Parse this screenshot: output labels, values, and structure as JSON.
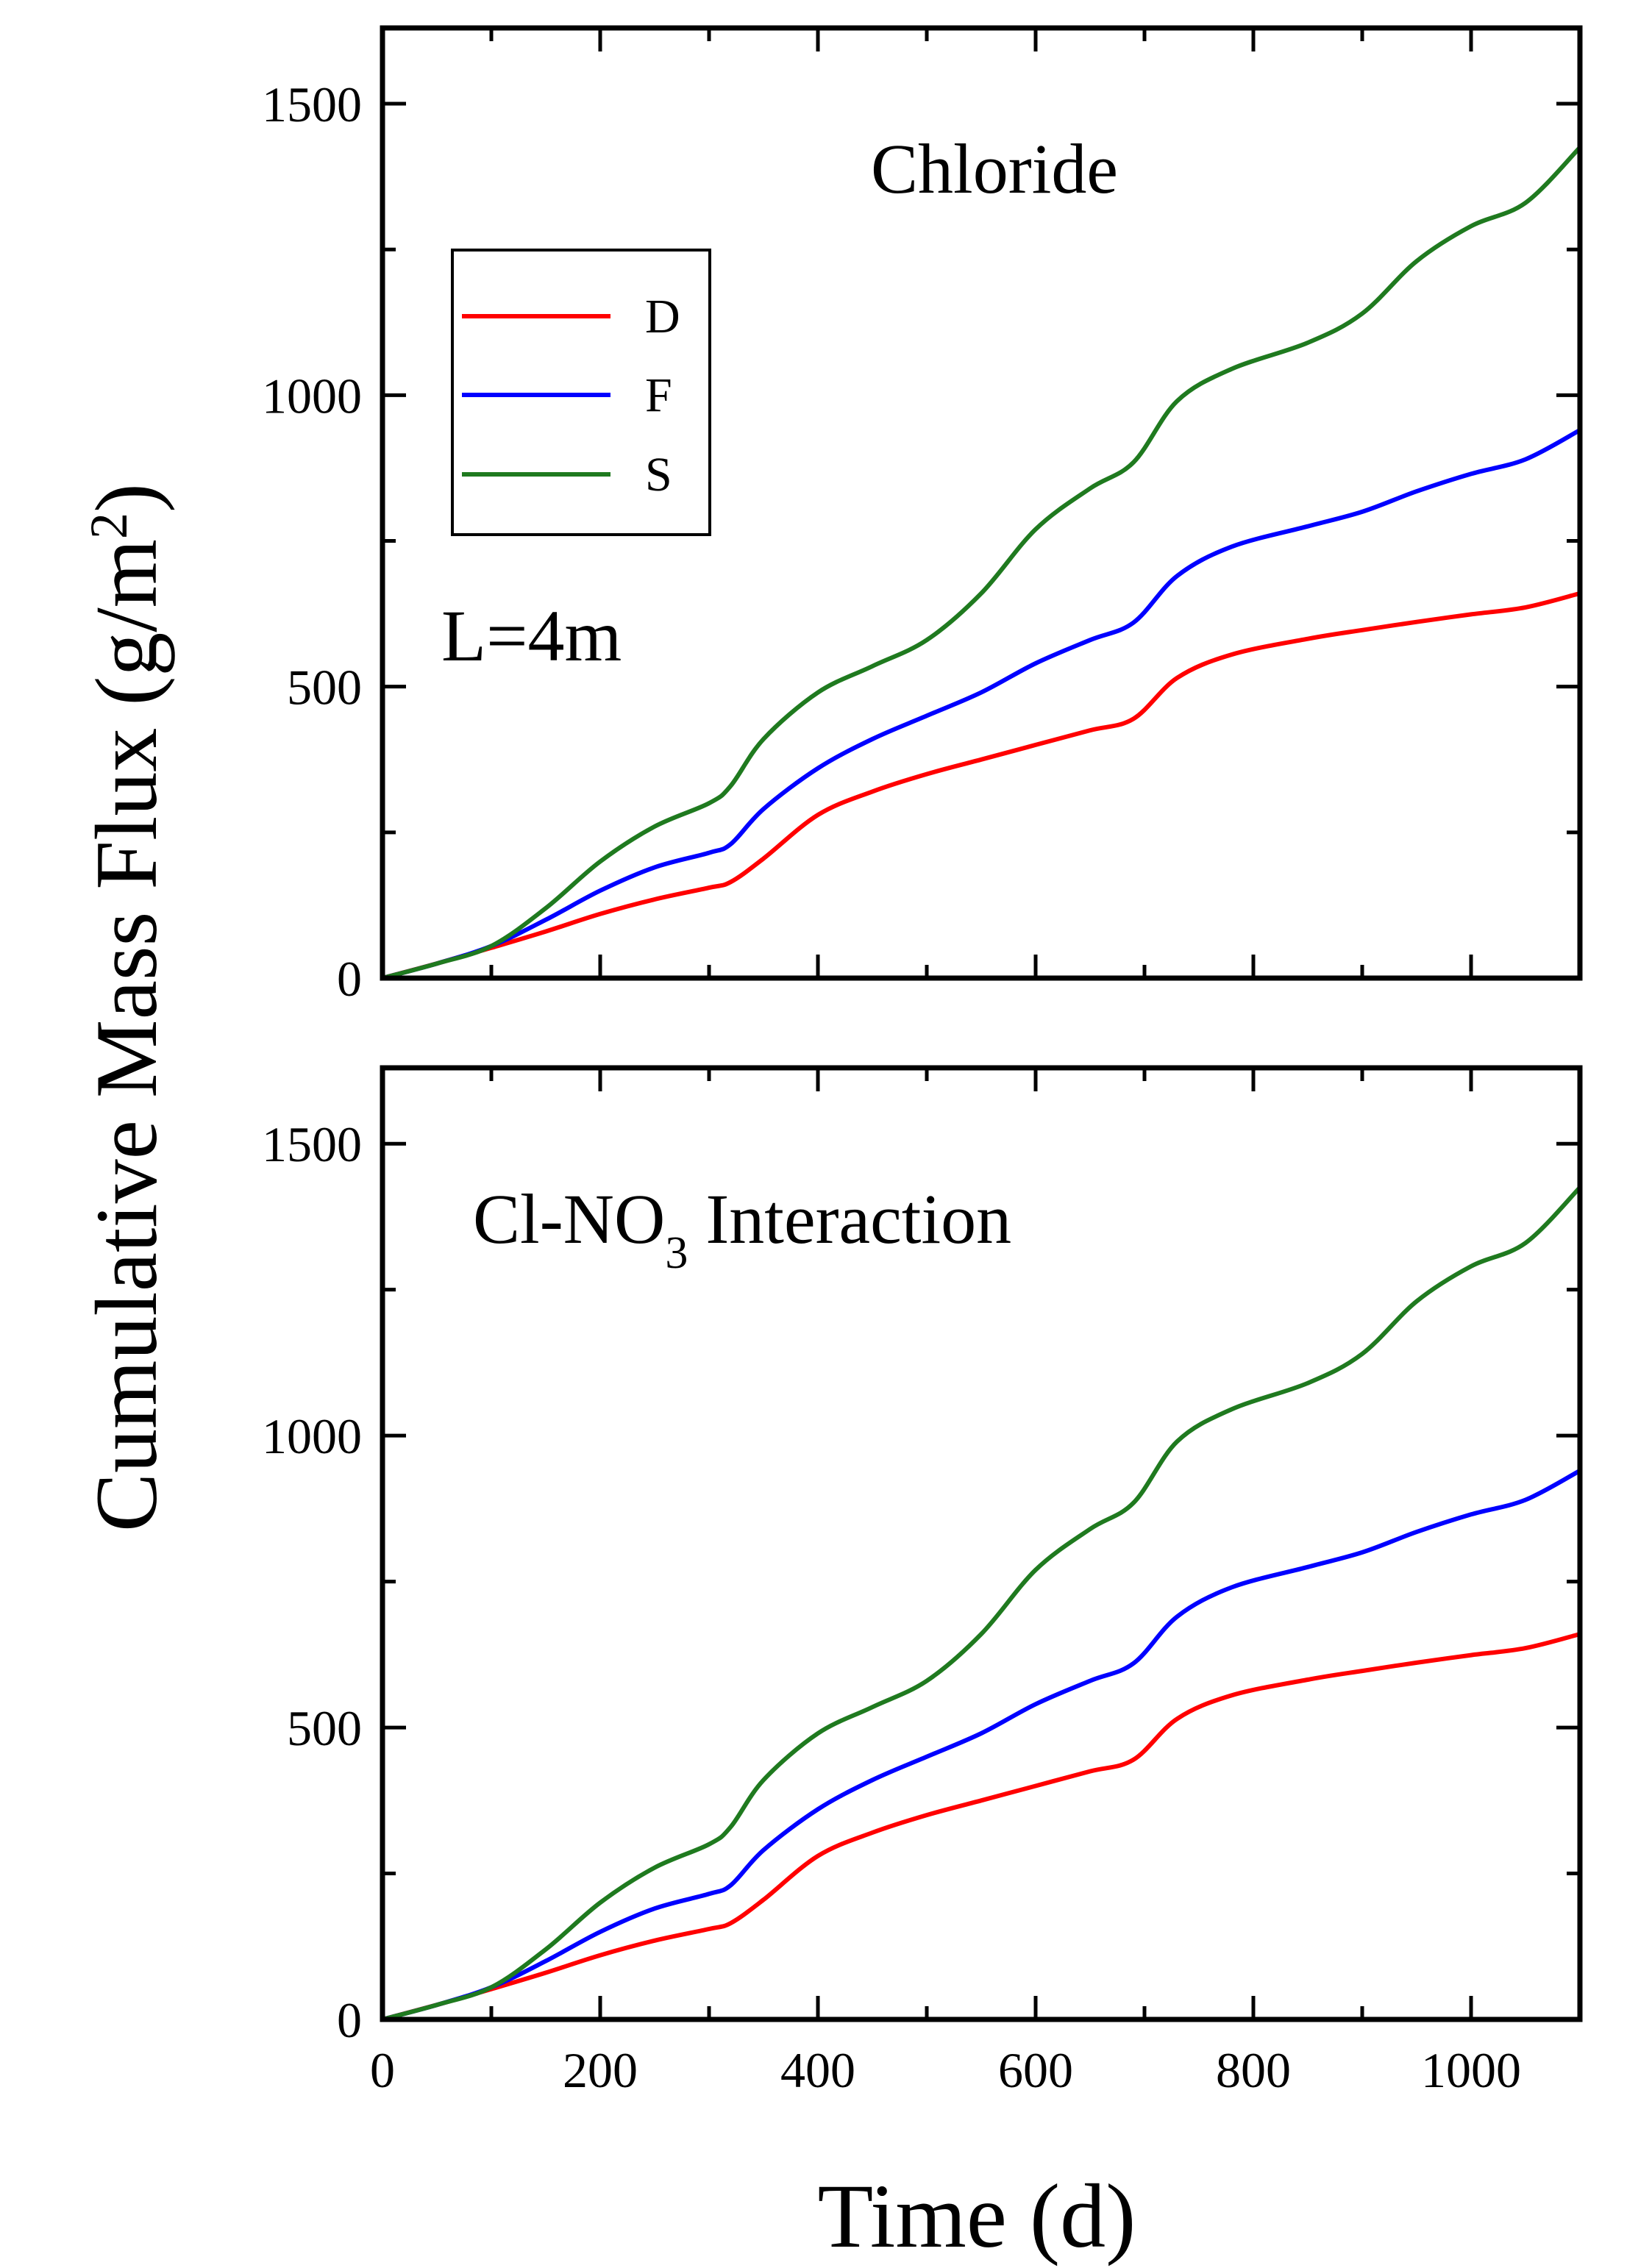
{
  "figure": {
    "ylabel": "Cumulative Mass Flux (g/m",
    "ylabel_sup": "2",
    "ylabel_close": ")",
    "xlabel": "Time (d)"
  },
  "colors": {
    "D": "#ff0000",
    "F": "#0000ff",
    "S": "#1f7a1f"
  },
  "chart_data": [
    {
      "type": "line",
      "title": "Chloride",
      "annotation": "L=4m",
      "xlim": [
        0,
        1100
      ],
      "ylim": [
        0,
        1630
      ],
      "yticks": [
        0,
        500,
        1000,
        1500
      ],
      "xticks": [
        0,
        200,
        400,
        600,
        800,
        1000
      ],
      "show_xticklabels": false,
      "legend": {
        "location": "upper-left",
        "entries": [
          "D",
          "F",
          "S"
        ]
      },
      "x": [
        0,
        50,
        100,
        150,
        200,
        250,
        300,
        320,
        350,
        400,
        450,
        500,
        550,
        600,
        650,
        690,
        730,
        780,
        850,
        900,
        950,
        1000,
        1050,
        1100
      ],
      "series": [
        {
          "name": "D",
          "values": [
            0,
            25,
            52,
            80,
            110,
            135,
            155,
            165,
            205,
            280,
            320,
            350,
            375,
            400,
            425,
            445,
            515,
            555,
            582,
            597,
            611,
            624,
            636,
            660
          ]
        },
        {
          "name": "F",
          "values": [
            0,
            25,
            55,
            100,
            150,
            190,
            215,
            230,
            290,
            360,
            410,
            450,
            490,
            540,
            580,
            610,
            690,
            740,
            775,
            800,
            835,
            865,
            890,
            940
          ]
        },
        {
          "name": "S",
          "values": [
            0,
            25,
            55,
            120,
            200,
            260,
            300,
            330,
            410,
            490,
            535,
            580,
            660,
            770,
            840,
            885,
            990,
            1045,
            1090,
            1140,
            1230,
            1290,
            1330,
            1425
          ]
        }
      ]
    },
    {
      "type": "line",
      "title": "Cl-NO",
      "title_sub": "3",
      "title_suffix": " Interaction",
      "xlim": [
        0,
        1100
      ],
      "ylim": [
        0,
        1630
      ],
      "yticks": [
        0,
        500,
        1000,
        1500
      ],
      "xticks": [
        0,
        200,
        400,
        600,
        800,
        1000
      ],
      "show_xticklabels": true,
      "x": [
        0,
        50,
        100,
        150,
        200,
        250,
        300,
        320,
        350,
        400,
        450,
        500,
        550,
        600,
        650,
        690,
        730,
        780,
        850,
        900,
        950,
        1000,
        1050,
        1100
      ],
      "series": [
        {
          "name": "D",
          "values": [
            0,
            25,
            52,
            80,
            110,
            135,
            155,
            165,
            205,
            280,
            320,
            350,
            375,
            400,
            425,
            445,
            515,
            555,
            582,
            597,
            611,
            624,
            636,
            660
          ]
        },
        {
          "name": "F",
          "values": [
            0,
            25,
            55,
            100,
            150,
            190,
            215,
            230,
            290,
            360,
            410,
            450,
            490,
            540,
            580,
            610,
            690,
            740,
            775,
            800,
            835,
            865,
            890,
            940
          ]
        },
        {
          "name": "S",
          "values": [
            0,
            25,
            55,
            120,
            200,
            260,
            300,
            330,
            410,
            490,
            535,
            580,
            660,
            770,
            840,
            885,
            990,
            1045,
            1090,
            1140,
            1230,
            1290,
            1330,
            1425
          ]
        }
      ]
    }
  ]
}
